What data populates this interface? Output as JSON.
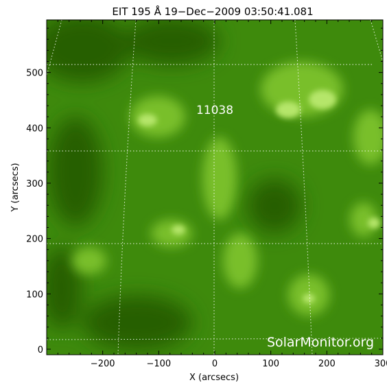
{
  "chart_data": {
    "type": "heatmap",
    "title": "EIT 195 Å 19−Dec−2009 03:50:41.081",
    "xlabel": "X (arcsecs)",
    "ylabel": "Y (arcsecs)",
    "xlim": [
      -300,
      300
    ],
    "ylim": [
      -10,
      595
    ],
    "xticks": [
      {
        "value": -200,
        "label": "−200"
      },
      {
        "value": -100,
        "label": "−100"
      },
      {
        "value": 0,
        "label": "0"
      },
      {
        "value": 100,
        "label": "100"
      },
      {
        "value": 200,
        "label": "200"
      },
      {
        "value": 300,
        "label": "300"
      }
    ],
    "yticks": [
      {
        "value": 0,
        "label": "0"
      },
      {
        "value": 100,
        "label": "100"
      },
      {
        "value": 200,
        "label": "200"
      },
      {
        "value": 300,
        "label": "300"
      },
      {
        "value": 400,
        "label": "400"
      },
      {
        "value": 500,
        "label": "500"
      }
    ],
    "annotations": [
      {
        "text": "11038",
        "x": 0,
        "y": 425
      }
    ],
    "watermark": "SolarMonitor.org",
    "colormap": "green",
    "grid": "dotted heliographic"
  }
}
